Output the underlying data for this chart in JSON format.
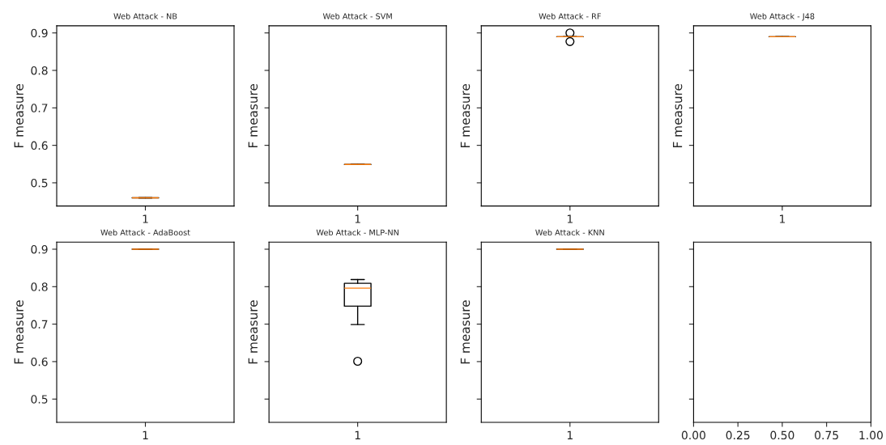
{
  "chart_data": [
    {
      "type": "box",
      "title": "Web Attack - NB",
      "ylabel": "F measure",
      "categories": [
        "1"
      ],
      "color": "#000000",
      "boxes": [
        {
          "low": 0.46,
          "q1": 0.46,
          "median": 0.46,
          "q3": 0.46,
          "high": 0.46
        }
      ],
      "ylim": [
        0.438,
        0.919
      ],
      "yticks": [
        0.5,
        0.6,
        0.7,
        0.8,
        0.9
      ]
    },
    {
      "type": "box",
      "title": "Web Attack - SVM",
      "ylabel": "F measure",
      "categories": [
        "1"
      ],
      "color": "#000000",
      "boxes": [
        {
          "low": 0.549,
          "q1": 0.549,
          "median": 0.549,
          "q3": 0.549,
          "high": 0.549
        }
      ],
      "ylim": [
        0.438,
        0.919
      ],
      "yticks": [
        0.5,
        0.6,
        0.7,
        0.8,
        0.9
      ],
      "tick_labels": "x"
    },
    {
      "type": "box",
      "title": "Web Attack - RF",
      "ylabel": "F measure",
      "categories": [
        "1"
      ],
      "color": "#000000",
      "boxes": [
        {
          "low": 0.89,
          "q1": 0.89,
          "median": 0.89,
          "q3": 0.89,
          "high": 0.89,
          "outliers": [
            0.9,
            0.877
          ]
        }
      ],
      "ylim": [
        0.438,
        0.919
      ],
      "yticks": [
        0.5,
        0.6,
        0.7,
        0.8,
        0.9
      ],
      "tick_labels": "x"
    },
    {
      "type": "box",
      "title": "Web Attack - J48",
      "ylabel": "F measure",
      "categories": [
        "1"
      ],
      "color": "#000000",
      "boxes": [
        {
          "low": 0.89,
          "q1": 0.89,
          "median": 0.89,
          "q3": 0.89,
          "high": 0.89
        }
      ],
      "ylim": [
        0.438,
        0.919
      ],
      "yticks": [
        0.5,
        0.6,
        0.7,
        0.8,
        0.9
      ],
      "tick_labels": "x"
    },
    {
      "type": "box",
      "title": "Web Attack - AdaBoost",
      "ylabel": "F measure",
      "categories": [
        "1"
      ],
      "color": "#000000",
      "boxes": [
        {
          "low": 0.9,
          "q1": 0.9,
          "median": 0.9,
          "q3": 0.9,
          "high": 0.9
        }
      ],
      "ylim": [
        0.438,
        0.919
      ],
      "yticks": [
        0.5,
        0.6,
        0.7,
        0.8,
        0.9
      ]
    },
    {
      "type": "box",
      "title": "Web Attack - MLP-NN",
      "ylabel": "F measure",
      "categories": [
        "1"
      ],
      "color": "#000000",
      "boxes": [
        {
          "low": 0.699,
          "q1": 0.748,
          "median": 0.796,
          "q3": 0.809,
          "high": 0.819,
          "outliers": [
            0.601
          ]
        }
      ],
      "ylim": [
        0.438,
        0.919
      ],
      "yticks": [
        0.5,
        0.6,
        0.7,
        0.8,
        0.9
      ],
      "tick_labels": "x"
    },
    {
      "type": "box",
      "title": "Web Attack - KNN",
      "ylabel": "F measure",
      "categories": [
        "1"
      ],
      "color": "#000000",
      "boxes": [
        {
          "low": 0.9,
          "q1": 0.9,
          "median": 0.9,
          "q3": 0.9,
          "high": 0.9
        }
      ],
      "ylim": [
        0.438,
        0.919
      ],
      "yticks": [
        0.5,
        0.6,
        0.7,
        0.8,
        0.9
      ],
      "tick_labels": "x"
    },
    {
      "type": "scatter",
      "xlim": [
        0,
        1
      ],
      "xticks": [
        {
          "value": 0,
          "label": "0.00"
        },
        {
          "value": 0.25,
          "label": "0.25"
        },
        {
          "value": 0.5,
          "label": "0.50"
        },
        {
          "value": 0.75,
          "label": "0.75"
        },
        {
          "value": 1,
          "label": "1.00"
        }
      ],
      "ylim": [
        0.438,
        0.919
      ],
      "yticks": [
        0.5,
        0.6,
        0.7,
        0.8,
        0.9
      ],
      "tick_labels": "x"
    }
  ]
}
